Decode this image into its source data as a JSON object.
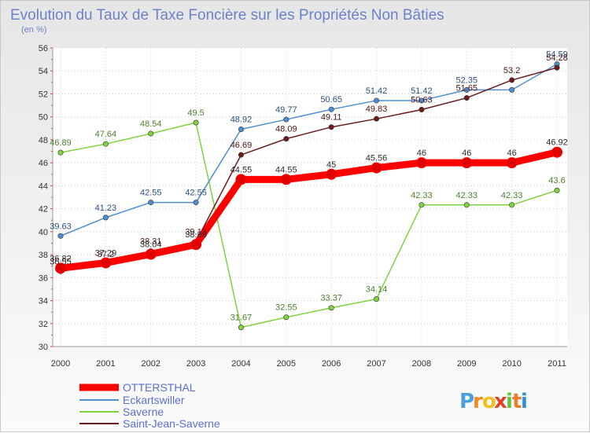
{
  "chart_data": {
    "type": "line",
    "title": "Evolution du Taux de Taxe Foncière sur les Propriétés Non Bâties",
    "subtitle": "(en %)",
    "x": [
      "2000",
      "2001",
      "2002",
      "2003",
      "2004",
      "2005",
      "2006",
      "2007",
      "2008",
      "2009",
      "2010",
      "2011"
    ],
    "ylim": [
      30,
      56
    ],
    "yticks": [
      30,
      32,
      34,
      36,
      38,
      40,
      42,
      44,
      46,
      48,
      50,
      52,
      54,
      56
    ],
    "grid": true,
    "legend_position": "bottom-left",
    "series": [
      {
        "name": "OTTERSTHAL",
        "color": "#ff0000",
        "values": [
          36.82,
          37.29,
          38.04,
          38.88,
          44.55,
          44.55,
          45,
          45.56,
          46,
          46,
          46,
          46.92
        ],
        "labels": [
          "36.82",
          "37.29",
          "38.04",
          "38.88",
          "44.55",
          "44.55",
          "45",
          "45.56",
          "46",
          "46",
          "46",
          "46.92"
        ]
      },
      {
        "name": "Eckartswiller",
        "color": "#4f8fd0",
        "values": [
          39.63,
          41.23,
          42.55,
          42.55,
          48.92,
          49.77,
          50.65,
          51.42,
          51.42,
          52.35,
          52.35,
          54.59
        ],
        "labels": [
          "39.63",
          "41.23",
          "42.55",
          "42.55",
          "48.92",
          "49.77",
          "50.65",
          "51.42",
          "51.42",
          "52.35",
          "",
          "54.59"
        ]
      },
      {
        "name": "Saverne",
        "color": "#7fd33f",
        "values": [
          46.89,
          47.64,
          48.54,
          49.5,
          31.67,
          32.55,
          33.37,
          34.14,
          42.33,
          42.33,
          42.33,
          43.6
        ],
        "labels": [
          "46.89",
          "47.64",
          "48.54",
          "49.5",
          "31.67",
          "32.55",
          "33.37",
          "34.14",
          "42.33",
          "42.33",
          "42.33",
          "43.6"
        ]
      },
      {
        "name": "Saint-Jean-Saverne",
        "color": "#6b1b1b",
        "values": [
          36.55,
          37.2,
          38.31,
          39.13,
          46.69,
          48.09,
          49.11,
          49.83,
          50.63,
          51.65,
          53.2,
          54.28
        ],
        "labels": [
          "36.55",
          "37.2",
          "38.31",
          "39.13",
          "46.69",
          "48.09",
          "49.11",
          "49.83",
          "50.63",
          "51.65",
          "53.2",
          "54.28"
        ]
      }
    ]
  },
  "brand": {
    "text": "Proxiti",
    "letters": [
      "P",
      "r",
      "o",
      "x",
      "i",
      "t",
      "i"
    ],
    "colors": [
      "#4a9fdc",
      "#f28a1e",
      "#f2c01e",
      "#e4412c",
      "#5fc23f",
      "#e77e2a",
      "#2f8fd8"
    ]
  }
}
